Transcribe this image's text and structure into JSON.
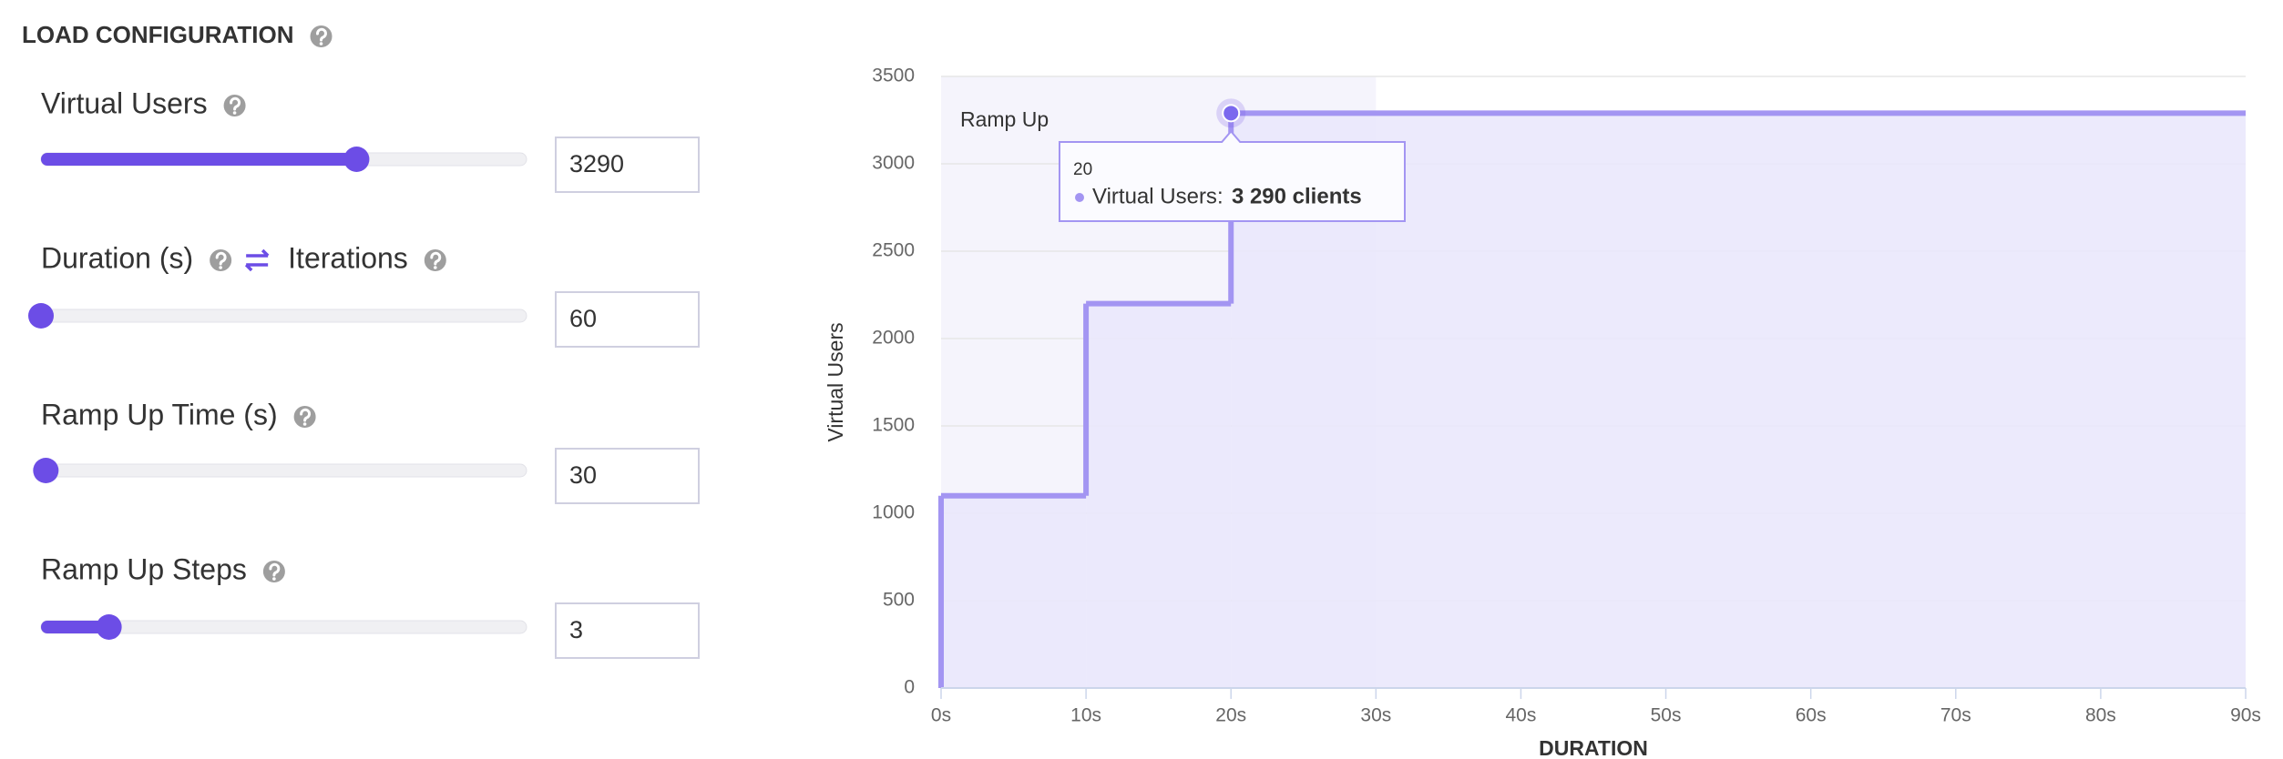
{
  "panel": {
    "title": "LOAD CONFIGURATION",
    "fields": [
      {
        "label": "Virtual Users",
        "value": 3290
      },
      {
        "label": "Duration (s)",
        "toggle_label": "Iterations",
        "value": 60
      },
      {
        "label": "Ramp Up Time (s)",
        "value": 30
      },
      {
        "label": "Ramp Up Steps",
        "value": 3
      }
    ]
  },
  "chart_data": {
    "type": "step",
    "y_label": "Virtual Users",
    "x_label": "DURATION",
    "plot_band": {
      "from": 0,
      "to": 30,
      "label": "Ramp Up"
    },
    "x": [
      0,
      10,
      20
    ],
    "series": [
      {
        "name": "Virtual Users",
        "color": "#a395f2",
        "values": [
          1100,
          2200,
          3290
        ],
        "value_labels": [
          null,
          null,
          "3 290 clients"
        ]
      }
    ],
    "xlim": [
      0,
      90
    ],
    "xticks": [
      {
        "value": 0,
        "label": "0s"
      },
      {
        "value": 10,
        "label": "10s"
      },
      {
        "value": 20,
        "label": "20s"
      },
      {
        "value": 30,
        "label": "30s"
      },
      {
        "value": 40,
        "label": "40s"
      },
      {
        "value": 50,
        "label": "50s"
      },
      {
        "value": 60,
        "label": "60s"
      },
      {
        "value": 70,
        "label": "70s"
      },
      {
        "value": 80,
        "label": "80s"
      },
      {
        "value": 90,
        "label": "90s"
      }
    ],
    "ylim": [
      0,
      3500
    ],
    "yticks": [
      0,
      500,
      1000,
      1500,
      2000,
      2500,
      3000,
      3500
    ],
    "grid": true
  }
}
